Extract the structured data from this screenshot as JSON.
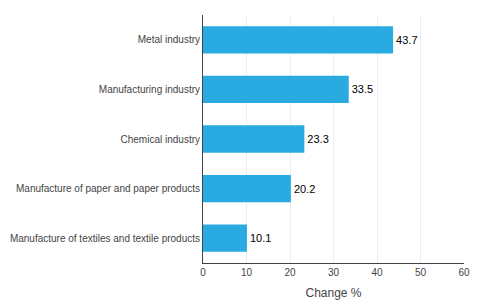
{
  "chart_data": {
    "type": "bar",
    "orientation": "horizontal",
    "categories": [
      "Manufacture of textiles and textile products",
      "Manufacture of paper and paper products",
      "Chemical industry",
      "Manufacturing industry",
      "Metal industry"
    ],
    "values": [
      10.1,
      20.2,
      23.3,
      33.5,
      43.7
    ],
    "color": "#29abe2",
    "xlabel": "Change %",
    "xlim": [
      0,
      60
    ],
    "xticks": [
      0,
      10,
      20,
      30,
      40,
      50,
      60
    ],
    "grid": true,
    "data_labels": true
  }
}
